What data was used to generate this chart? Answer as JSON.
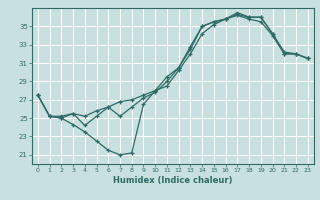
{
  "xlabel": "Humidex (Indice chaleur)",
  "background_color": "#c8e0e0",
  "grid_color": "#ffffff",
  "line_color": "#2e6b65",
  "xlim": [
    -0.5,
    23.5
  ],
  "ylim": [
    20.0,
    37.0
  ],
  "xticks": [
    0,
    1,
    2,
    3,
    4,
    5,
    6,
    7,
    8,
    9,
    10,
    11,
    12,
    13,
    14,
    15,
    16,
    17,
    18,
    19,
    20,
    21,
    22,
    23
  ],
  "yticks": [
    21,
    23,
    25,
    27,
    29,
    31,
    33,
    35
  ],
  "line1_y": [
    27.5,
    25.2,
    25.0,
    24.3,
    23.5,
    22.5,
    21.5,
    21.0,
    21.2,
    26.5,
    28.0,
    29.5,
    30.5,
    32.5,
    35.0,
    35.5,
    35.8,
    36.2,
    35.8,
    35.5,
    34.0,
    32.0,
    32.0,
    31.5
  ],
  "line2_y": [
    27.5,
    25.2,
    25.2,
    25.5,
    24.2,
    25.2,
    26.2,
    25.2,
    26.2,
    27.2,
    27.8,
    29.0,
    30.5,
    32.8,
    35.0,
    35.5,
    35.8,
    36.3,
    36.0,
    36.0,
    34.2,
    32.2,
    32.0,
    31.5
  ],
  "line3_y": [
    27.5,
    25.2,
    25.0,
    25.5,
    25.2,
    25.8,
    26.2,
    26.8,
    27.0,
    27.5,
    28.0,
    28.5,
    30.2,
    32.0,
    34.2,
    35.2,
    35.8,
    36.5,
    36.0,
    36.0,
    34.2,
    32.0,
    32.0,
    31.5
  ]
}
